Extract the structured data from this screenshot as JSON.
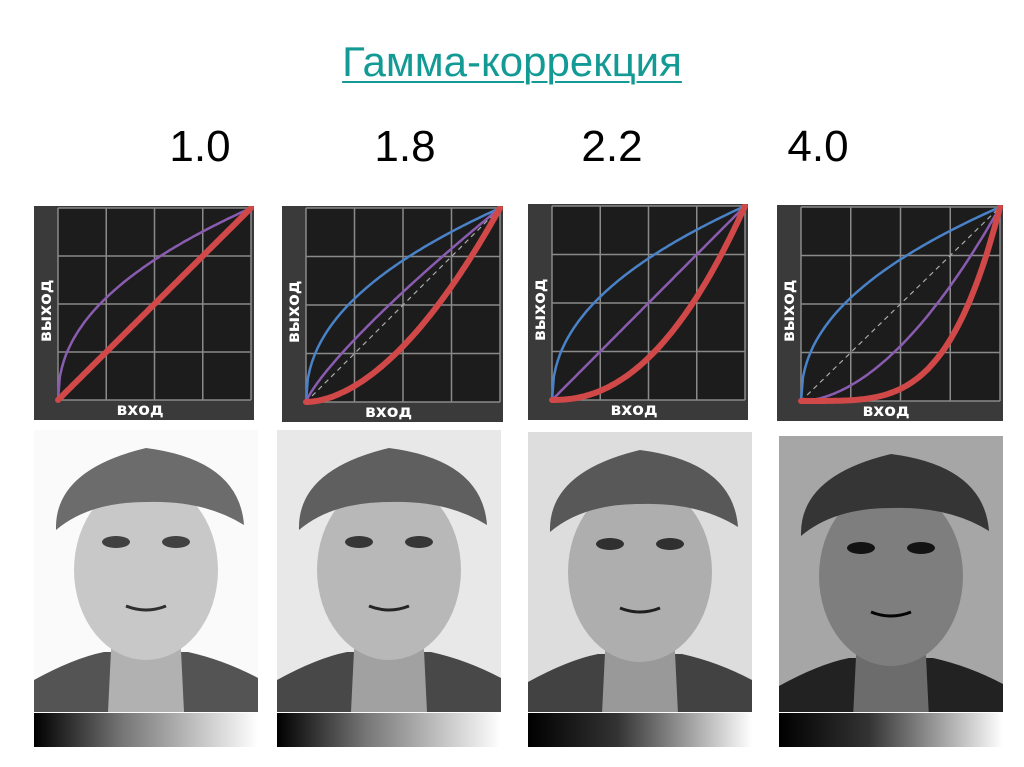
{
  "title": "Гамма-коррекция",
  "axis_labels": {
    "x": "вход",
    "y": "выход"
  },
  "colors": {
    "title": "#139a94",
    "encode": "#4a82c8",
    "combined": "#8a5cb0",
    "display": "#d04848",
    "grid": "#8a8a8a",
    "plot_bg": "#1c1c1c"
  },
  "encoding_gamma": 2.2,
  "panels": [
    {
      "label": "1.0",
      "gamma": 1.0
    },
    {
      "label": "1.8",
      "gamma": 1.8
    },
    {
      "label": "2.2",
      "gamma": 2.2
    },
    {
      "label": "4.0",
      "gamma": 4.0
    }
  ]
}
